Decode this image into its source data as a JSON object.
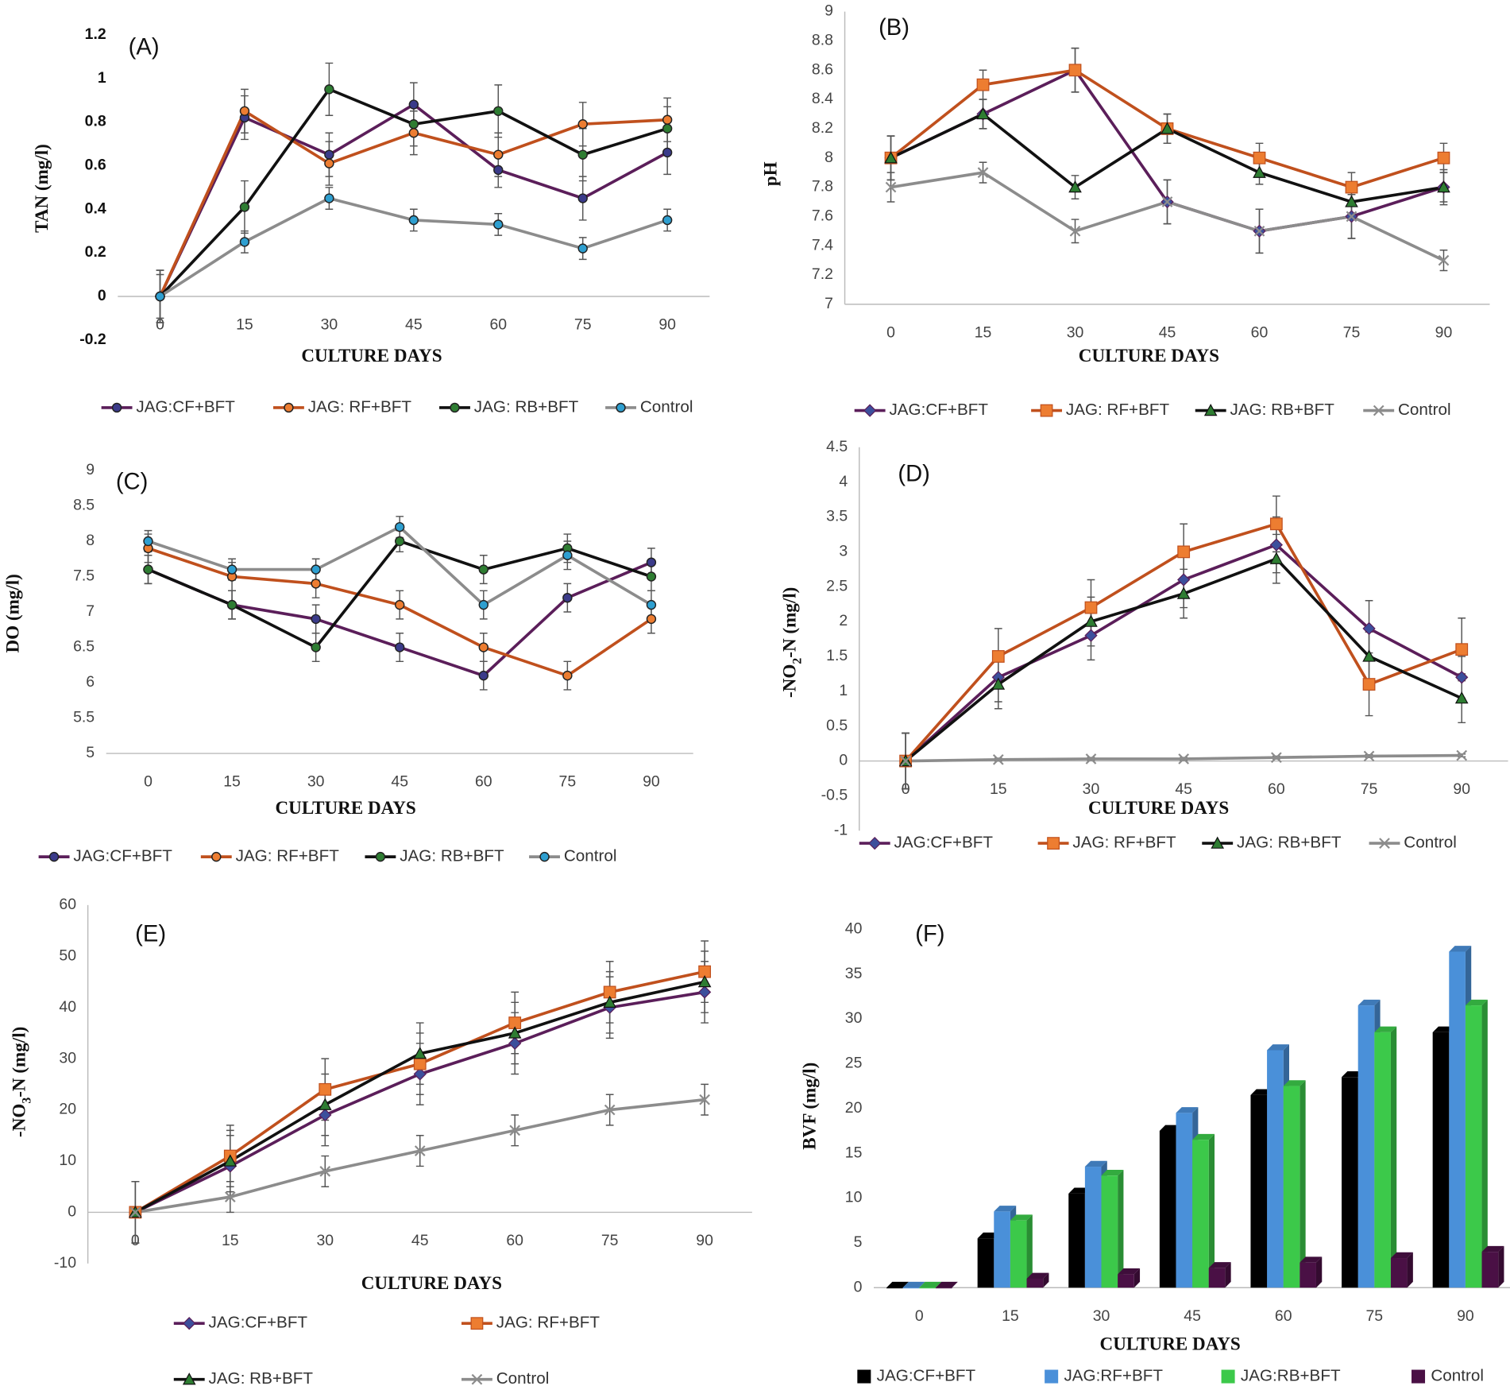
{
  "chart_data": [
    {
      "type": "line",
      "title": "(A)",
      "x_label": "CULTURE DAYS",
      "y_label": "TAN  (mg/l)",
      "categories": [
        "0",
        "15",
        "30",
        "45",
        "60",
        "75",
        "90"
      ],
      "ylim": [
        -0.2,
        1.2
      ],
      "yticks": [
        -0.2,
        0,
        0.2,
        0.4,
        0.6,
        0.8,
        1,
        1.2
      ],
      "bold_ticks": true,
      "series": [
        {
          "name": "JAG:CF+BFT",
          "color": "#5b1e5a",
          "marker": "circle",
          "marker_color": "#3b3b8a",
          "values": [
            0,
            0.82,
            0.65,
            0.88,
            0.58,
            0.45,
            0.66
          ],
          "errors": [
            0.12,
            0.1,
            0.1,
            0.1,
            0.08,
            0.1,
            0.1
          ]
        },
        {
          "name": "JAG: RF+BFT",
          "color": "#c0501d",
          "marker": "circle",
          "marker_color": "#ed7d31",
          "values": [
            0,
            0.85,
            0.61,
            0.75,
            0.65,
            0.79,
            0.81
          ],
          "errors": [
            0.12,
            0.1,
            0.1,
            0.1,
            0.1,
            0.1,
            0.1
          ]
        },
        {
          "name": "JAG: RB+BFT",
          "color": "#111111",
          "marker": "circle",
          "marker_color": "#2e7d32",
          "values": [
            0,
            0.41,
            0.95,
            0.79,
            0.85,
            0.65,
            0.77
          ],
          "errors": [
            0.12,
            0.12,
            0.12,
            0.1,
            0.12,
            0.12,
            0.1
          ]
        },
        {
          "name": "Control",
          "color": "#8c8c8c",
          "marker": "circle",
          "marker_color": "#2e9fd0",
          "values": [
            0,
            0.25,
            0.45,
            0.35,
            0.33,
            0.22,
            0.35
          ],
          "errors": [
            0.1,
            0.05,
            0.05,
            0.05,
            0.05,
            0.05,
            0.05
          ]
        }
      ]
    },
    {
      "type": "line",
      "title": "(B)",
      "x_label": "CULTURE DAYS",
      "y_label": "pH",
      "categories": [
        "0",
        "15",
        "30",
        "45",
        "60",
        "75",
        "90"
      ],
      "ylim": [
        7,
        9
      ],
      "yticks": [
        7,
        7.2,
        7.4,
        7.6,
        7.8,
        8,
        8.2,
        8.4,
        8.6,
        8.8,
        9
      ],
      "series": [
        {
          "name": "JAG:CF+BFT",
          "color": "#5b1e5a",
          "marker": "diamond",
          "marker_color": "#3c4f9c",
          "values": [
            8,
            8.3,
            8.6,
            7.7,
            7.5,
            7.6,
            7.8
          ],
          "errors": [
            0.15,
            0.1,
            0.15,
            0.15,
            0.15,
            0.15,
            0.12
          ]
        },
        {
          "name": "JAG: RF+BFT",
          "color": "#c0501d",
          "marker": "square",
          "marker_color": "#ed7d31",
          "values": [
            8,
            8.5,
            8.6,
            8.2,
            8,
            7.8,
            8
          ],
          "errors": [
            0.15,
            0.1,
            0.15,
            0.1,
            0.1,
            0.1,
            0.1
          ]
        },
        {
          "name": "JAG: RB+BFT",
          "color": "#111111",
          "marker": "triangle",
          "marker_color": "#2e7d32",
          "values": [
            8,
            8.3,
            7.8,
            8.2,
            7.9,
            7.7,
            7.8
          ],
          "errors": [
            0.15,
            0.1,
            0.08,
            0.1,
            0.08,
            0.1,
            0.1
          ]
        },
        {
          "name": "Control",
          "color": "#8c8c8c",
          "marker": "x",
          "marker_color": "#8c8c8c",
          "values": [
            7.8,
            7.9,
            7.5,
            7.7,
            7.5,
            7.6,
            7.3
          ],
          "errors": [
            0.1,
            0.07,
            0.08,
            0.15,
            0.15,
            0.15,
            0.07
          ]
        }
      ]
    },
    {
      "type": "line",
      "title": "(C)",
      "x_label": "CULTURE DAYS",
      "y_label": "DO (mg/l)",
      "categories": [
        "0",
        "15",
        "30",
        "45",
        "60",
        "75",
        "90"
      ],
      "ylim": [
        5,
        9
      ],
      "yticks": [
        5,
        5.5,
        6,
        6.5,
        7,
        7.5,
        8,
        8.5,
        9
      ],
      "series": [
        {
          "name": "JAG:CF+BFT",
          "color": "#5b1e5a",
          "marker": "circle",
          "marker_color": "#3b3b8a",
          "values": [
            7.6,
            7.1,
            6.9,
            6.5,
            6.1,
            7.2,
            7.7
          ],
          "errors": [
            0.2,
            0.2,
            0.2,
            0.2,
            0.2,
            0.2,
            0.2
          ]
        },
        {
          "name": "JAG: RF+BFT",
          "color": "#c0501d",
          "marker": "circle",
          "marker_color": "#ed7d31",
          "values": [
            7.9,
            7.5,
            7.4,
            7.1,
            6.5,
            6.1,
            6.9
          ],
          "errors": [
            0.2,
            0.2,
            0.2,
            0.2,
            0.2,
            0.2,
            0.2
          ]
        },
        {
          "name": "JAG: RB+BFT",
          "color": "#111111",
          "marker": "circle",
          "marker_color": "#2e7d32",
          "values": [
            7.6,
            7.1,
            6.5,
            8,
            7.6,
            7.9,
            7.5
          ],
          "errors": [
            0.2,
            0.2,
            0.2,
            0.15,
            0.2,
            0.2,
            0.2
          ]
        },
        {
          "name": "Control",
          "color": "#8c8c8c",
          "marker": "circle",
          "marker_color": "#2e9fd0",
          "values": [
            8,
            7.6,
            7.6,
            8.2,
            7.1,
            7.8,
            7.1
          ],
          "errors": [
            0.15,
            0.15,
            0.15,
            0.15,
            0.2,
            0.2,
            0.2
          ]
        }
      ]
    },
    {
      "type": "line",
      "title": "(D)",
      "x_label": "CULTURE DAYS",
      "y_label": [
        "-NO",
        "2",
        "-N (mg/l)"
      ],
      "categories": [
        "0",
        "15",
        "30",
        "45",
        "60",
        "75",
        "90"
      ],
      "ylim": [
        -1,
        4.5
      ],
      "yticks": [
        -1,
        -0.5,
        0,
        0.5,
        1,
        1.5,
        2,
        2.5,
        3,
        3.5,
        4,
        4.5
      ],
      "series": [
        {
          "name": "JAG:CF+BFT",
          "color": "#5b1e5a",
          "marker": "diamond",
          "marker_color": "#3c4f9c",
          "values": [
            0,
            1.2,
            1.8,
            2.6,
            3.1,
            1.9,
            1.2
          ],
          "errors": [
            0.4,
            0.35,
            0.35,
            0.4,
            0.4,
            0.4,
            0.3
          ]
        },
        {
          "name": "JAG: RF+BFT",
          "color": "#c0501d",
          "marker": "square",
          "marker_color": "#ed7d31",
          "values": [
            0,
            1.5,
            2.2,
            3,
            3.4,
            1.1,
            1.6
          ],
          "errors": [
            0.4,
            0.4,
            0.4,
            0.4,
            0.4,
            0.45,
            0.45
          ]
        },
        {
          "name": "JAG: RB+BFT",
          "color": "#111111",
          "marker": "triangle",
          "marker_color": "#2e7d32",
          "values": [
            0,
            1.1,
            2,
            2.4,
            2.9,
            1.5,
            0.9
          ],
          "errors": [
            0.4,
            0.35,
            0.35,
            0.35,
            0.35,
            0.35,
            0.35
          ]
        },
        {
          "name": "Control",
          "color": "#8c8c8c",
          "marker": "x",
          "marker_color": "#8c8c8c",
          "values": [
            0,
            0.02,
            0.03,
            0.03,
            0.05,
            0.07,
            0.08
          ],
          "errors": [
            0.4,
            0.02,
            0.02,
            0.02,
            0.02,
            0.02,
            0.02
          ]
        }
      ]
    },
    {
      "type": "line",
      "title": "(E)",
      "x_label": "CULTURE DAYS",
      "y_label": [
        "-NO",
        "3",
        "-N (mg/l)"
      ],
      "legend_columns": 2,
      "categories": [
        "0",
        "15",
        "30",
        "45",
        "60",
        "75",
        "90"
      ],
      "ylim": [
        -10,
        60
      ],
      "yticks": [
        -10,
        0,
        10,
        20,
        30,
        40,
        50,
        60
      ],
      "series": [
        {
          "name": "JAG:CF+BFT",
          "color": "#5b1e5a",
          "marker": "diamond",
          "marker_color": "#3c4f9c",
          "values": [
            0,
            9,
            19,
            27,
            33,
            40,
            43
          ],
          "errors": [
            6,
            6,
            6,
            6,
            6,
            6,
            6
          ]
        },
        {
          "name": "JAG: RF+BFT",
          "color": "#c0501d",
          "marker": "square",
          "marker_color": "#ed7d31",
          "values": [
            0,
            11,
            24,
            29,
            37,
            43,
            47
          ],
          "errors": [
            6,
            6,
            6,
            6,
            6,
            6,
            6
          ]
        },
        {
          "name": "JAG: RB+BFT",
          "color": "#111111",
          "marker": "triangle",
          "marker_color": "#2e7d32",
          "values": [
            0,
            10,
            21,
            31,
            35,
            41,
            45
          ],
          "errors": [
            6,
            6,
            6,
            6,
            6,
            6,
            6
          ]
        },
        {
          "name": "Control",
          "color": "#8c8c8c",
          "marker": "x",
          "marker_color": "#8c8c8c",
          "values": [
            0,
            3,
            8,
            12,
            16,
            20,
            22
          ],
          "errors": [
            6,
            3,
            3,
            3,
            3,
            3,
            3
          ]
        }
      ]
    },
    {
      "type": "bar",
      "title": "(F)",
      "x_label": "CULTURE DAYS",
      "y_label": "BVF  (mg/l)",
      "categories": [
        "0",
        "15",
        "30",
        "45",
        "60",
        "75",
        "90"
      ],
      "ylim": [
        0,
        40
      ],
      "yticks": [
        0,
        5,
        10,
        15,
        20,
        25,
        30,
        35,
        40
      ],
      "series": [
        {
          "name": "JAG:CF+BFT",
          "color": "#000000",
          "values": [
            0,
            5.5,
            10.5,
            17.5,
            21.5,
            23.5,
            28.5
          ]
        },
        {
          "name": "JAG:RF+BFT",
          "color": "#4a90d9",
          "values": [
            0,
            8.5,
            13.5,
            19.5,
            26.5,
            31.5,
            37.5
          ]
        },
        {
          "name": "JAG:RB+BFT",
          "color": "#3cc94a",
          "values": [
            0,
            7.5,
            12.5,
            16.5,
            22.5,
            28.5,
            31.5
          ]
        },
        {
          "name": "Control",
          "color": "#4a1045",
          "values": [
            0,
            1,
            1.5,
            2.2,
            2.8,
            3.3,
            4
          ]
        }
      ]
    }
  ]
}
